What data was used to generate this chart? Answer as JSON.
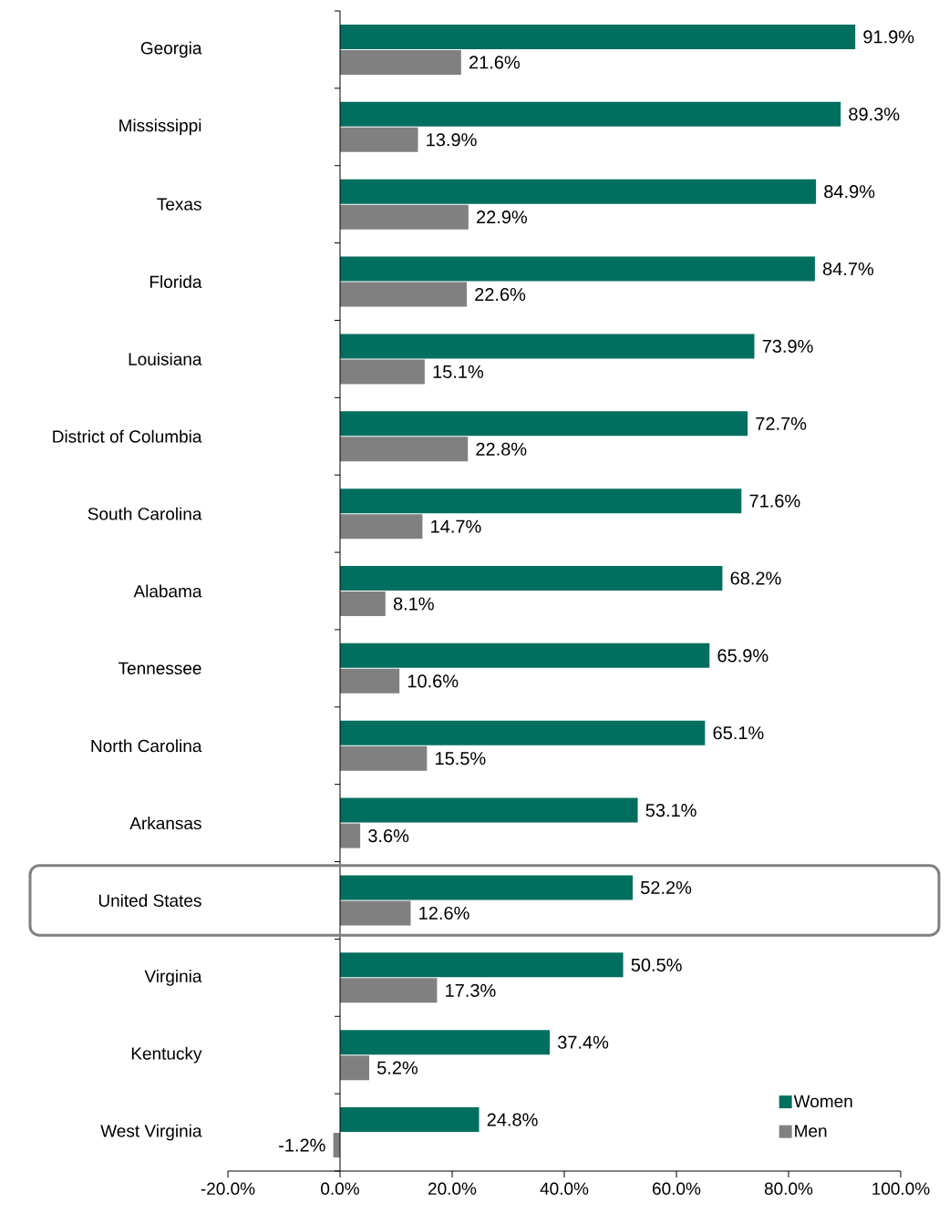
{
  "chart_data": {
    "type": "bar",
    "orientation": "horizontal",
    "categories": [
      "Georgia",
      "Mississippi",
      "Texas",
      "Florida",
      "Louisiana",
      "District of Columbia",
      "South Carolina",
      "Alabama",
      "Tennessee",
      "North Carolina",
      "Arkansas",
      "United States",
      "Virginia",
      "Kentucky",
      "West Virginia"
    ],
    "series": [
      {
        "name": "Women",
        "color": "#006f5f",
        "values": [
          91.9,
          89.3,
          84.9,
          84.7,
          73.9,
          72.7,
          71.6,
          68.2,
          65.9,
          65.1,
          53.1,
          52.2,
          50.5,
          37.4,
          24.8
        ],
        "value_labels": [
          "91.9%",
          "89.3%",
          "84.9%",
          "84.7%",
          "73.9%",
          "72.7%",
          "71.6%",
          "68.2%",
          "65.9%",
          "65.1%",
          "53.1%",
          "52.2%",
          "50.5%",
          "37.4%",
          "24.8%"
        ]
      },
      {
        "name": "Men",
        "color": "#808080",
        "values": [
          21.6,
          13.9,
          22.9,
          22.6,
          15.1,
          22.8,
          14.7,
          8.1,
          10.6,
          15.5,
          3.6,
          12.6,
          17.3,
          5.2,
          -1.2
        ],
        "value_labels": [
          "21.6%",
          "13.9%",
          "22.9%",
          "22.6%",
          "15.1%",
          "22.8%",
          "14.7%",
          "8.1%",
          "10.6%",
          "15.5%",
          "3.6%",
          "12.6%",
          "17.3%",
          "5.2%",
          "-1.2%"
        ]
      }
    ],
    "xlim": [
      -20,
      100
    ],
    "xticks": [
      {
        "value": -20,
        "label": "-20.0%"
      },
      {
        "value": 0,
        "label": "0.0%"
      },
      {
        "value": 20,
        "label": "20.0%"
      },
      {
        "value": 40,
        "label": "40.0%"
      },
      {
        "value": 60,
        "label": "60.0%"
      },
      {
        "value": 80,
        "label": "80.0%"
      },
      {
        "value": 100,
        "label": "100.0%"
      }
    ],
    "ref_lines": [
      {
        "axis": "x",
        "value": 0,
        "color": "#000000"
      }
    ],
    "legend": "bottom right",
    "grid": false
  }
}
